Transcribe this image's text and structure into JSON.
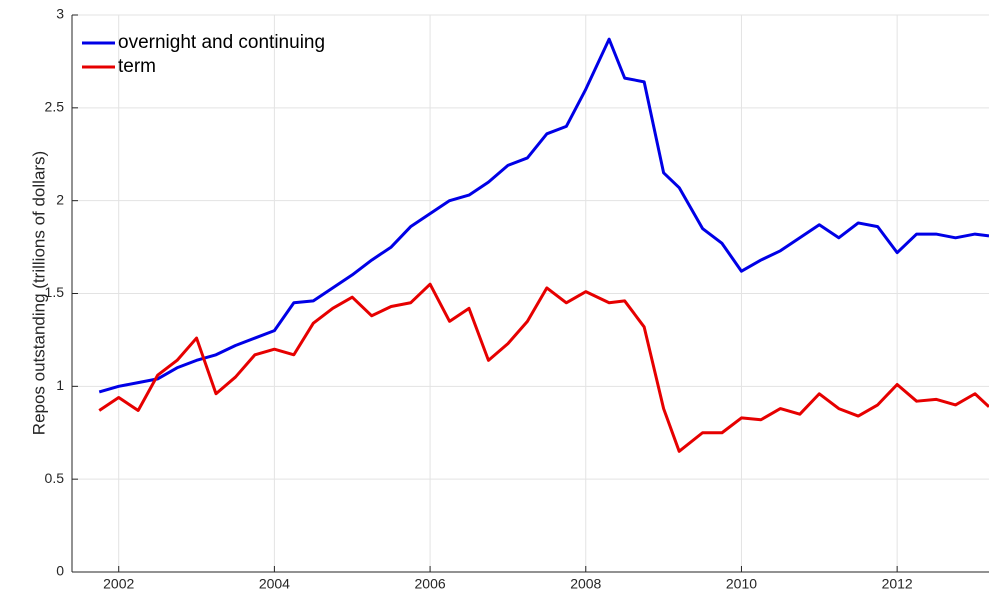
{
  "chart_data": {
    "type": "line",
    "ylabel": "Repos outstanding (trillions of dollars)",
    "x": [
      2001.75,
      2002,
      2002.25,
      2002.5,
      2002.75,
      2003,
      2003.25,
      2003.5,
      2003.75,
      2004,
      2004.25,
      2004.5,
      2004.75,
      2005,
      2005.25,
      2005.5,
      2005.75,
      2006,
      2006.25,
      2006.5,
      2006.75,
      2007,
      2007.25,
      2007.5,
      2007.75,
      2008,
      2008.3,
      2008.5,
      2008.75,
      2009,
      2009.2,
      2009.5,
      2009.75,
      2010,
      2010.25,
      2010.5,
      2010.75,
      2011,
      2011.25,
      2011.5,
      2011.75,
      2012,
      2012.25,
      2012.5,
      2012.75,
      2013,
      2013.18
    ],
    "series": [
      {
        "name": "overnight and continuing",
        "color": "#0000e6",
        "values": [
          0.97,
          1.0,
          1.02,
          1.04,
          1.1,
          1.14,
          1.17,
          1.22,
          1.26,
          1.3,
          1.45,
          1.46,
          1.53,
          1.6,
          1.68,
          1.75,
          1.86,
          1.93,
          2.0,
          2.03,
          2.1,
          2.19,
          2.23,
          2.36,
          2.4,
          2.6,
          2.87,
          2.66,
          2.64,
          2.15,
          2.07,
          1.85,
          1.77,
          1.62,
          1.68,
          1.73,
          1.8,
          1.87,
          1.8,
          1.88,
          1.86,
          1.72,
          1.82,
          1.82,
          1.8,
          1.82,
          1.81
        ]
      },
      {
        "name": "term",
        "color": "#e60000",
        "values": [
          0.87,
          0.94,
          0.87,
          1.06,
          1.14,
          1.26,
          0.96,
          1.05,
          1.17,
          1.2,
          1.17,
          1.34,
          1.42,
          1.48,
          1.38,
          1.43,
          1.45,
          1.55,
          1.35,
          1.42,
          1.14,
          1.23,
          1.35,
          1.53,
          1.45,
          1.51,
          1.45,
          1.46,
          1.32,
          0.88,
          0.65,
          0.75,
          0.75,
          0.83,
          0.82,
          0.88,
          0.85,
          0.96,
          0.88,
          0.84,
          0.9,
          1.01,
          0.92,
          0.93,
          0.9,
          0.96,
          0.89
        ]
      }
    ],
    "xlim": [
      2001.4,
      2013.18
    ],
    "xticks": [
      2002,
      2004,
      2006,
      2008,
      2010,
      2012
    ],
    "ylim": [
      0,
      3
    ],
    "yticks": [
      0,
      0.5,
      1,
      1.5,
      2,
      2.5,
      3
    ],
    "grid": true,
    "legend": "northwest"
  }
}
